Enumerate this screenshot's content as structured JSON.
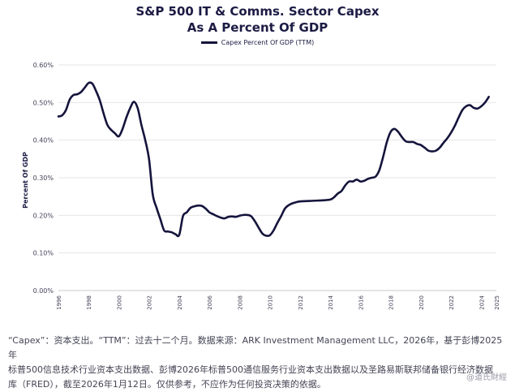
{
  "chart_data": {
    "type": "line",
    "title": "S&P 500 IT & Comms. Sector Capex",
    "subtitle": "As A Percent Of GDP",
    "ylabel": "Percent Of GDP",
    "xlabel": "",
    "ylim": [
      0,
      0.6
    ],
    "xlim": [
      1996,
      2025
    ],
    "y_ticks": [
      "0.00%",
      "0.10%",
      "0.20%",
      "0.30%",
      "0.40%",
      "0.50%",
      "0.60%"
    ],
    "x_ticks": [
      "1996",
      "1998",
      "2000",
      "2002",
      "2004",
      "2006",
      "2008",
      "2010",
      "2012",
      "2014",
      "2016",
      "2018",
      "2020",
      "2022",
      "2024",
      "2025"
    ],
    "grid": "horizontal",
    "legend_position": "top",
    "line_color": "#14143c",
    "series": [
      {
        "name": "Capex Percent Of GDP (TTM)",
        "x": [
          1996.0,
          1996.25,
          1996.5,
          1996.75,
          1997.0,
          1997.25,
          1997.5,
          1997.75,
          1998.0,
          1998.25,
          1998.5,
          1998.75,
          1999.0,
          1999.25,
          1999.5,
          1999.75,
          2000.0,
          2000.25,
          2000.5,
          2000.75,
          2001.0,
          2001.25,
          2001.5,
          2001.75,
          2002.0,
          2002.25,
          2002.5,
          2002.75,
          2003.0,
          2003.25,
          2003.5,
          2003.75,
          2004.0,
          2004.25,
          2004.5,
          2004.75,
          2005.0,
          2005.25,
          2005.5,
          2005.75,
          2006.0,
          2006.25,
          2006.5,
          2006.75,
          2007.0,
          2007.25,
          2007.5,
          2007.75,
          2008.0,
          2008.25,
          2008.5,
          2008.75,
          2009.0,
          2009.25,
          2009.5,
          2009.75,
          2010.0,
          2010.25,
          2010.5,
          2010.75,
          2011.0,
          2011.25,
          2011.5,
          2011.75,
          2012.0,
          2012.5,
          2013.0,
          2013.5,
          2014.0,
          2014.25,
          2014.5,
          2014.75,
          2015.0,
          2015.25,
          2015.5,
          2015.75,
          2016.0,
          2016.25,
          2016.5,
          2016.75,
          2017.0,
          2017.25,
          2017.5,
          2017.75,
          2018.0,
          2018.25,
          2018.5,
          2018.75,
          2019.0,
          2019.25,
          2019.5,
          2019.75,
          2020.0,
          2020.25,
          2020.5,
          2020.75,
          2021.0,
          2021.25,
          2021.5,
          2021.75,
          2022.0,
          2022.25,
          2022.5,
          2022.75,
          2023.0,
          2023.25,
          2023.5,
          2023.75,
          2024.0,
          2024.25,
          2024.5
        ],
        "values": [
          0.463,
          0.466,
          0.48,
          0.508,
          0.52,
          0.522,
          0.528,
          0.54,
          0.552,
          0.55,
          0.53,
          0.505,
          0.47,
          0.44,
          0.427,
          0.418,
          0.41,
          0.43,
          0.46,
          0.485,
          0.502,
          0.485,
          0.44,
          0.4,
          0.35,
          0.255,
          0.22,
          0.19,
          0.16,
          0.157,
          0.155,
          0.15,
          0.148,
          0.198,
          0.208,
          0.22,
          0.224,
          0.226,
          0.225,
          0.218,
          0.208,
          0.203,
          0.198,
          0.194,
          0.192,
          0.196,
          0.197,
          0.196,
          0.199,
          0.201,
          0.201,
          0.198,
          0.185,
          0.168,
          0.152,
          0.146,
          0.147,
          0.16,
          0.18,
          0.198,
          0.218,
          0.227,
          0.232,
          0.235,
          0.237,
          0.238,
          0.239,
          0.24,
          0.242,
          0.248,
          0.258,
          0.265,
          0.28,
          0.29,
          0.29,
          0.295,
          0.29,
          0.292,
          0.297,
          0.3,
          0.303,
          0.32,
          0.355,
          0.395,
          0.422,
          0.43,
          0.422,
          0.408,
          0.397,
          0.395,
          0.395,
          0.39,
          0.387,
          0.38,
          0.372,
          0.37,
          0.372,
          0.38,
          0.393,
          0.405,
          0.42,
          0.438,
          0.46,
          0.48,
          0.49,
          0.493,
          0.486,
          0.484,
          0.49,
          0.5,
          0.515
        ]
      }
    ]
  },
  "footer": {
    "line1": "“Capex”：资本支出。“TTM”：过去十二个月。数据来源：ARK Investment Management LLC，2026年，基于彭博2025年",
    "line2": "标普500信息技术行业资本支出数据、彭博2026年标普500通信服务行业资本支出数据以及圣路易斯联邦储备银行经济数据",
    "line3": "库（FRED），截至2026年1月12日。仅供参考，不应作为任何投资决策的依据。"
  },
  "watermark": "@道氏財經"
}
